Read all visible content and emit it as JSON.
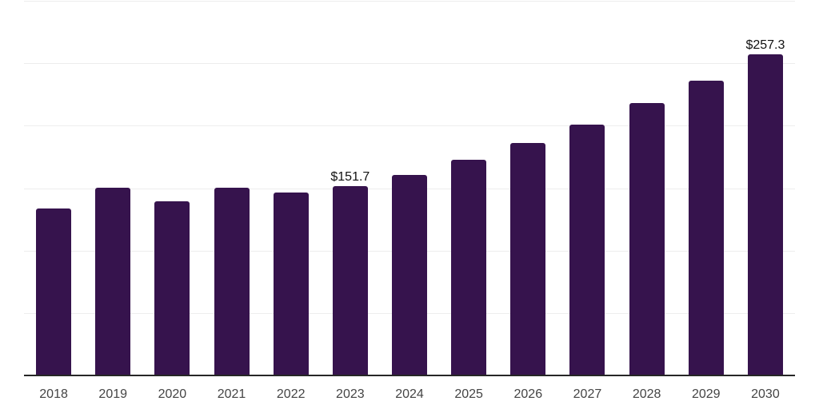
{
  "chart": {
    "background_color": "#ffffff",
    "bar_color": "#36134d",
    "gridline_color": "#ededed",
    "axis_line_color": "#262626",
    "tick_label_color": "#444444",
    "data_label_color": "#111111"
  },
  "chart_data": {
    "type": "bar",
    "title": "",
    "xlabel": "",
    "ylabel": "",
    "categories": [
      "2018",
      "2019",
      "2020",
      "2021",
      "2022",
      "2023",
      "2024",
      "2025",
      "2026",
      "2027",
      "2028",
      "2029",
      "2030"
    ],
    "values": [
      133.6,
      150.1,
      139.6,
      150.2,
      146.5,
      151.7,
      160.7,
      173.0,
      186.1,
      200.6,
      218.0,
      236.2,
      257.3
    ],
    "data_labels": [
      {
        "index": 5,
        "text": "$151.7"
      },
      {
        "index": 12,
        "text": "$257.3"
      }
    ],
    "ylim": [
      0,
      300
    ],
    "gridline_step": 50,
    "grid": true,
    "y_axis_labels_visible": false,
    "legend_position": "none"
  }
}
